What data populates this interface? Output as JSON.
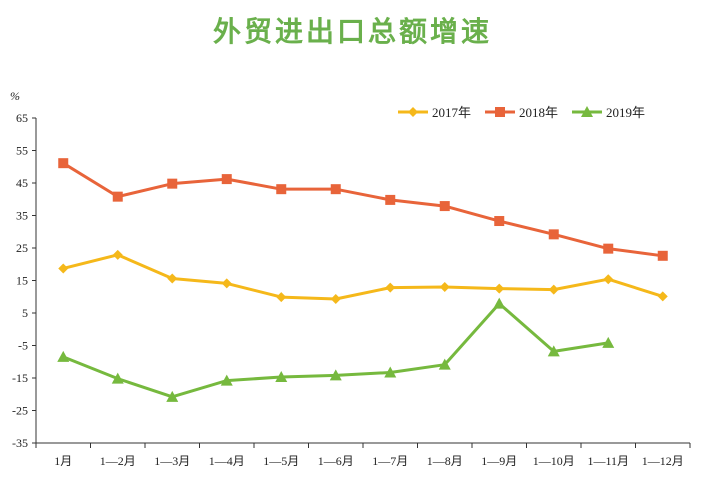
{
  "chart_data": {
    "type": "line",
    "title": "外贸进出口总额增速",
    "ylabel": "%",
    "xlabel": "",
    "categories": [
      "1月",
      "1—2月",
      "1—3月",
      "1—4月",
      "1—5月",
      "1—6月",
      "1—7月",
      "1—8月",
      "1—9月",
      "1—10月",
      "1—11月",
      "1—12月"
    ],
    "ylim": [
      -35,
      65
    ],
    "yticks": [
      65,
      55,
      45,
      35,
      25,
      15,
      5,
      -5,
      -15,
      -25,
      -35
    ],
    "ytick_labels": [
      "65",
      "55",
      "45",
      "35",
      "25",
      "15",
      "5",
      "-5",
      "-15",
      "-25",
      "-35"
    ],
    "grid": false,
    "legend_position": "top-right",
    "series": [
      {
        "name": "2017年",
        "color": "#f5b81a",
        "marker": "diamond",
        "values": [
          18.7,
          22.9,
          15.6,
          14.1,
          9.9,
          9.3,
          12.8,
          13.0,
          12.5,
          12.2,
          15.4,
          10.1
        ]
      },
      {
        "name": "2018年",
        "color": "#e8643a",
        "marker": "square",
        "values": [
          51.1,
          40.8,
          44.8,
          46.2,
          43.1,
          43.1,
          39.8,
          37.9,
          33.3,
          29.2,
          24.8,
          22.6
        ]
      },
      {
        "name": "2019年",
        "color": "#76b93e",
        "marker": "triangle",
        "values": [
          -8.5,
          -15.2,
          -20.8,
          -15.8,
          -14.7,
          -14.2,
          -13.3,
          -10.9,
          7.9,
          -6.8,
          -4.2,
          null
        ]
      }
    ]
  }
}
